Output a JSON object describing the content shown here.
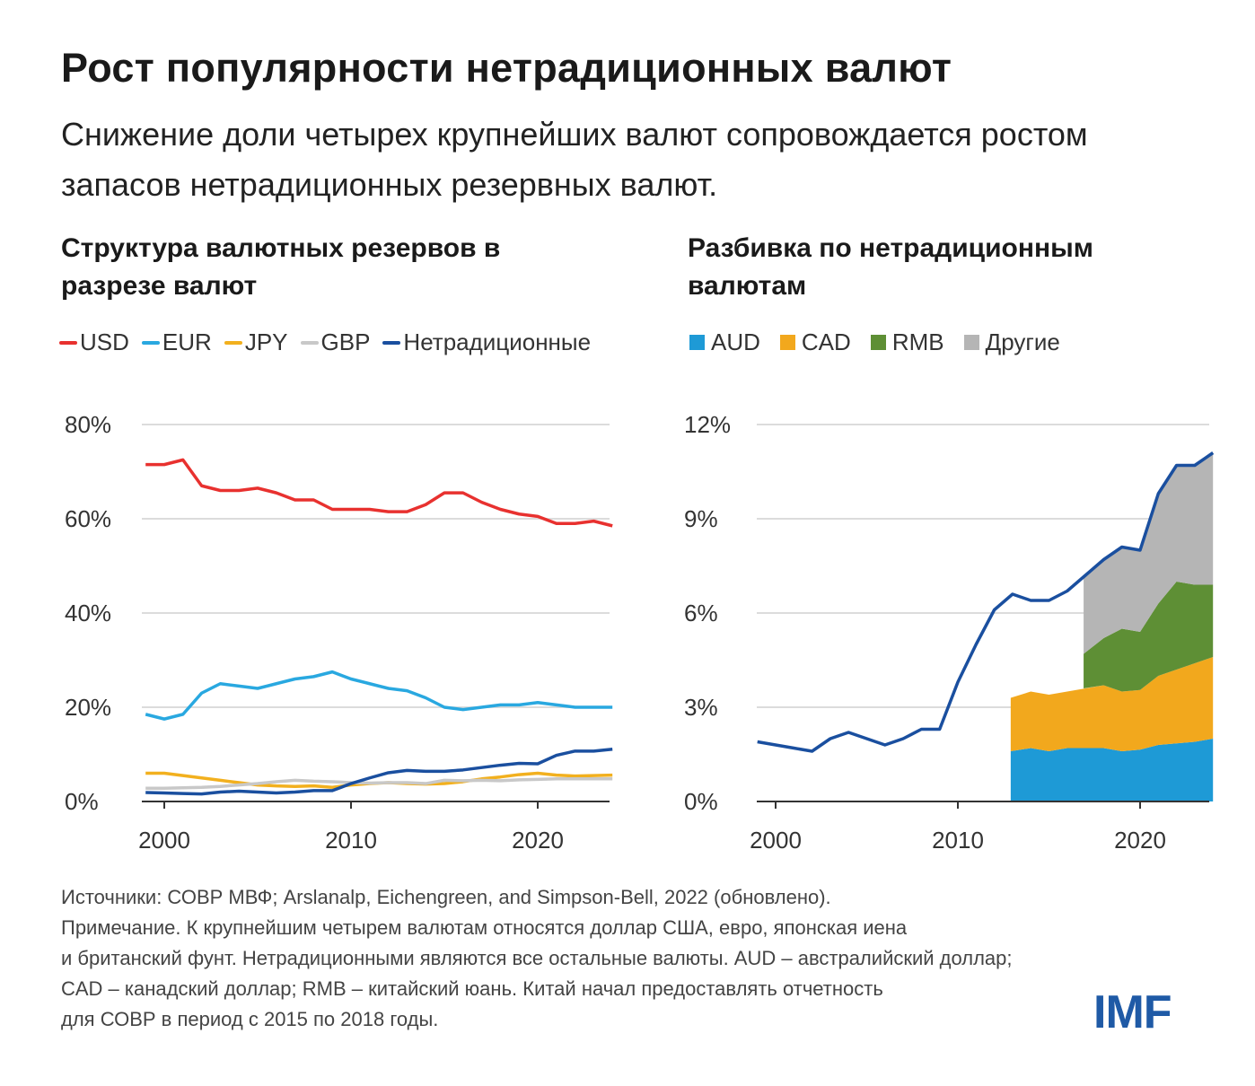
{
  "header": {
    "title": "Рост популярности нетрадиционных валют",
    "subtitle": "Снижение доли четырех крупнейших валют сопровождается ростом запасов нетрадиционных резервных валют."
  },
  "colors": {
    "USD": "#e8312f",
    "EUR": "#29a8e0",
    "JPY": "#f2b01e",
    "GBP": "#c8c8c8",
    "Нетрадиционные": "#1a4f9f",
    "AUD": "#1e9ad6",
    "CAD": "#f2a81d",
    "RMB": "#5e8f35",
    "Другие": "#b5b5b5"
  },
  "chart_data": [
    {
      "type": "line",
      "title": "Структура валютных резервов в разрезе валют",
      "x": [
        1999,
        2000,
        2001,
        2002,
        2003,
        2004,
        2005,
        2006,
        2007,
        2008,
        2009,
        2010,
        2011,
        2012,
        2013,
        2014,
        2015,
        2016,
        2017,
        2018,
        2019,
        2020,
        2021,
        2022,
        2023,
        2024
      ],
      "xticks": [
        "2000",
        "2010",
        "2020"
      ],
      "xlim": [
        1998.9,
        2024
      ],
      "yticks": [
        "0%",
        "20%",
        "40%",
        "60%",
        "80%"
      ],
      "ylim": [
        0,
        80
      ],
      "grid": true,
      "legend": "top",
      "series": [
        {
          "name": "USD",
          "values": [
            71.5,
            71.5,
            72.5,
            67,
            66,
            66,
            66.5,
            65.5,
            64,
            64,
            62,
            62,
            62,
            61.5,
            61.5,
            63,
            65.5,
            65.5,
            63.5,
            62,
            61,
            60.5,
            59,
            59,
            59.5,
            58.5
          ]
        },
        {
          "name": "EUR",
          "values": [
            18.5,
            17.5,
            18.5,
            23,
            25,
            24.5,
            24,
            25,
            26,
            26.5,
            27.5,
            26,
            25,
            24,
            23.5,
            22,
            20,
            19.5,
            20,
            20.5,
            20.5,
            21,
            20.5,
            20,
            20,
            20
          ]
        },
        {
          "name": "JPY",
          "values": [
            6,
            6,
            5.5,
            5,
            4.5,
            4,
            3.5,
            3.3,
            3.2,
            3.3,
            3,
            3.5,
            3.8,
            4,
            3.8,
            3.7,
            3.8,
            4.2,
            4.8,
            5.2,
            5.7,
            6,
            5.6,
            5.4,
            5.5,
            5.6
          ]
        },
        {
          "name": "GBP",
          "values": [
            2.8,
            2.8,
            2.9,
            3,
            3.2,
            3.5,
            3.8,
            4.2,
            4.5,
            4.3,
            4.2,
            4,
            3.9,
            4,
            4,
            3.8,
            4.5,
            4.4,
            4.5,
            4.4,
            4.6,
            4.7,
            4.8,
            4.8,
            4.8,
            4.8
          ]
        },
        {
          "name": "Нетрадиционные",
          "values": [
            1.9,
            1.8,
            1.7,
            1.6,
            2,
            2.2,
            2,
            1.8,
            2,
            2.3,
            2.3,
            3.8,
            5,
            6.1,
            6.6,
            6.4,
            6.4,
            6.7,
            7.2,
            7.7,
            8.1,
            8,
            9.8,
            10.7,
            10.7,
            11.1
          ]
        }
      ]
    },
    {
      "type": "area",
      "title": "Разбивка по нетрадиционным валютам",
      "xticks": [
        "2000",
        "2010",
        "2020"
      ],
      "xlim": [
        1998.9,
        2024
      ],
      "yticks": [
        "0%",
        "3%",
        "6%",
        "9%",
        "12%"
      ],
      "ylim": [
        0,
        12
      ],
      "grid": true,
      "legend": "top",
      "line": {
        "name": "Нетрадиционные",
        "x": [
          1999,
          2000,
          2001,
          2002,
          2003,
          2004,
          2005,
          2006,
          2007,
          2008,
          2009,
          2010,
          2011,
          2012,
          2013,
          2014,
          2015,
          2016,
          2017,
          2018,
          2019,
          2020,
          2021,
          2022,
          2023,
          2024
        ],
        "values": [
          1.9,
          1.8,
          1.7,
          1.6,
          2,
          2.2,
          2,
          1.8,
          2,
          2.3,
          2.3,
          3.8,
          5,
          6.1,
          6.6,
          6.4,
          6.4,
          6.7,
          7.2,
          7.7,
          8.1,
          8,
          9.8,
          10.7,
          10.7,
          11.1
        ]
      },
      "stack_x": [
        2013,
        2014,
        2015,
        2016,
        2017,
        2018,
        2019,
        2020,
        2021,
        2022,
        2023,
        2024
      ],
      "stacks": [
        {
          "name": "AUD",
          "values": [
            1.6,
            1.7,
            1.6,
            1.7,
            1.7,
            1.7,
            1.6,
            1.65,
            1.8,
            1.85,
            1.9,
            2.0
          ]
        },
        {
          "name": "CAD",
          "values": [
            1.7,
            1.8,
            1.8,
            1.8,
            1.9,
            2.0,
            1.9,
            1.9,
            2.2,
            2.35,
            2.5,
            2.6
          ]
        },
        {
          "name": "RMB",
          "values": [
            null,
            null,
            null,
            null,
            1.1,
            1.5,
            2.0,
            1.85,
            2.3,
            2.8,
            2.5,
            2.3
          ]
        },
        {
          "name": "Другие",
          "values": [
            null,
            null,
            null,
            null,
            2.5,
            2.5,
            2.6,
            2.6,
            3.5,
            3.7,
            3.8,
            4.2
          ]
        }
      ]
    }
  ],
  "legend_left": [
    "USD",
    "EUR",
    "JPY",
    "GBP",
    "Нетрадиционные"
  ],
  "legend_right": [
    "AUD",
    "CAD",
    "RMB",
    "Другие"
  ],
  "footer": {
    "line1": "Источники: СОВР МВФ; Arslanalp, Eichengreen, and Simpson-Bell, 2022 (обновлено).",
    "line2": "Примечание. К крупнейшим четырем валютам относятся доллар США, евро, японская иена",
    "line3": "и британский фунт. Нетрадиционными являются все остальные валюты. AUD – австралийский доллар;",
    "line4": "CAD – канадский доллар; RMB – китайский юань. Китай начал предоставлять отчетность",
    "line5": "для СОВР в период с 2015 по 2018 годы."
  },
  "logo": "IMF"
}
